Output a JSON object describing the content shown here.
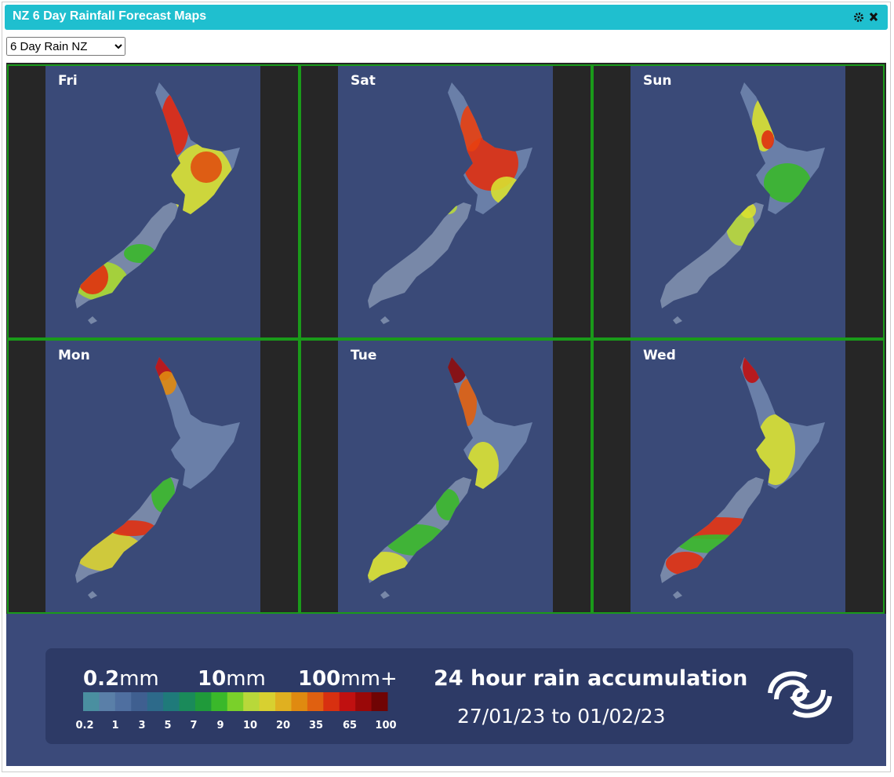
{
  "header": {
    "title": "NZ 6 Day Rainfall Forecast Maps"
  },
  "selector": {
    "selected": "6 Day Rain NZ"
  },
  "maps": [
    {
      "day": "Fri"
    },
    {
      "day": "Sat"
    },
    {
      "day": "Sun"
    },
    {
      "day": "Mon"
    },
    {
      "day": "Tue"
    },
    {
      "day": "Wed"
    }
  ],
  "legend": {
    "headings": [
      {
        "amount": "0.2",
        "unit": "mm"
      },
      {
        "amount": "10",
        "unit": "mm"
      },
      {
        "amount": "100",
        "unit": "mm+"
      }
    ],
    "scale": [
      0.2,
      1,
      3,
      5,
      7,
      9,
      10,
      20,
      35,
      65,
      100
    ],
    "title": "24 hour rain accumulation",
    "period": "27/01/23 to 01/02/23"
  }
}
